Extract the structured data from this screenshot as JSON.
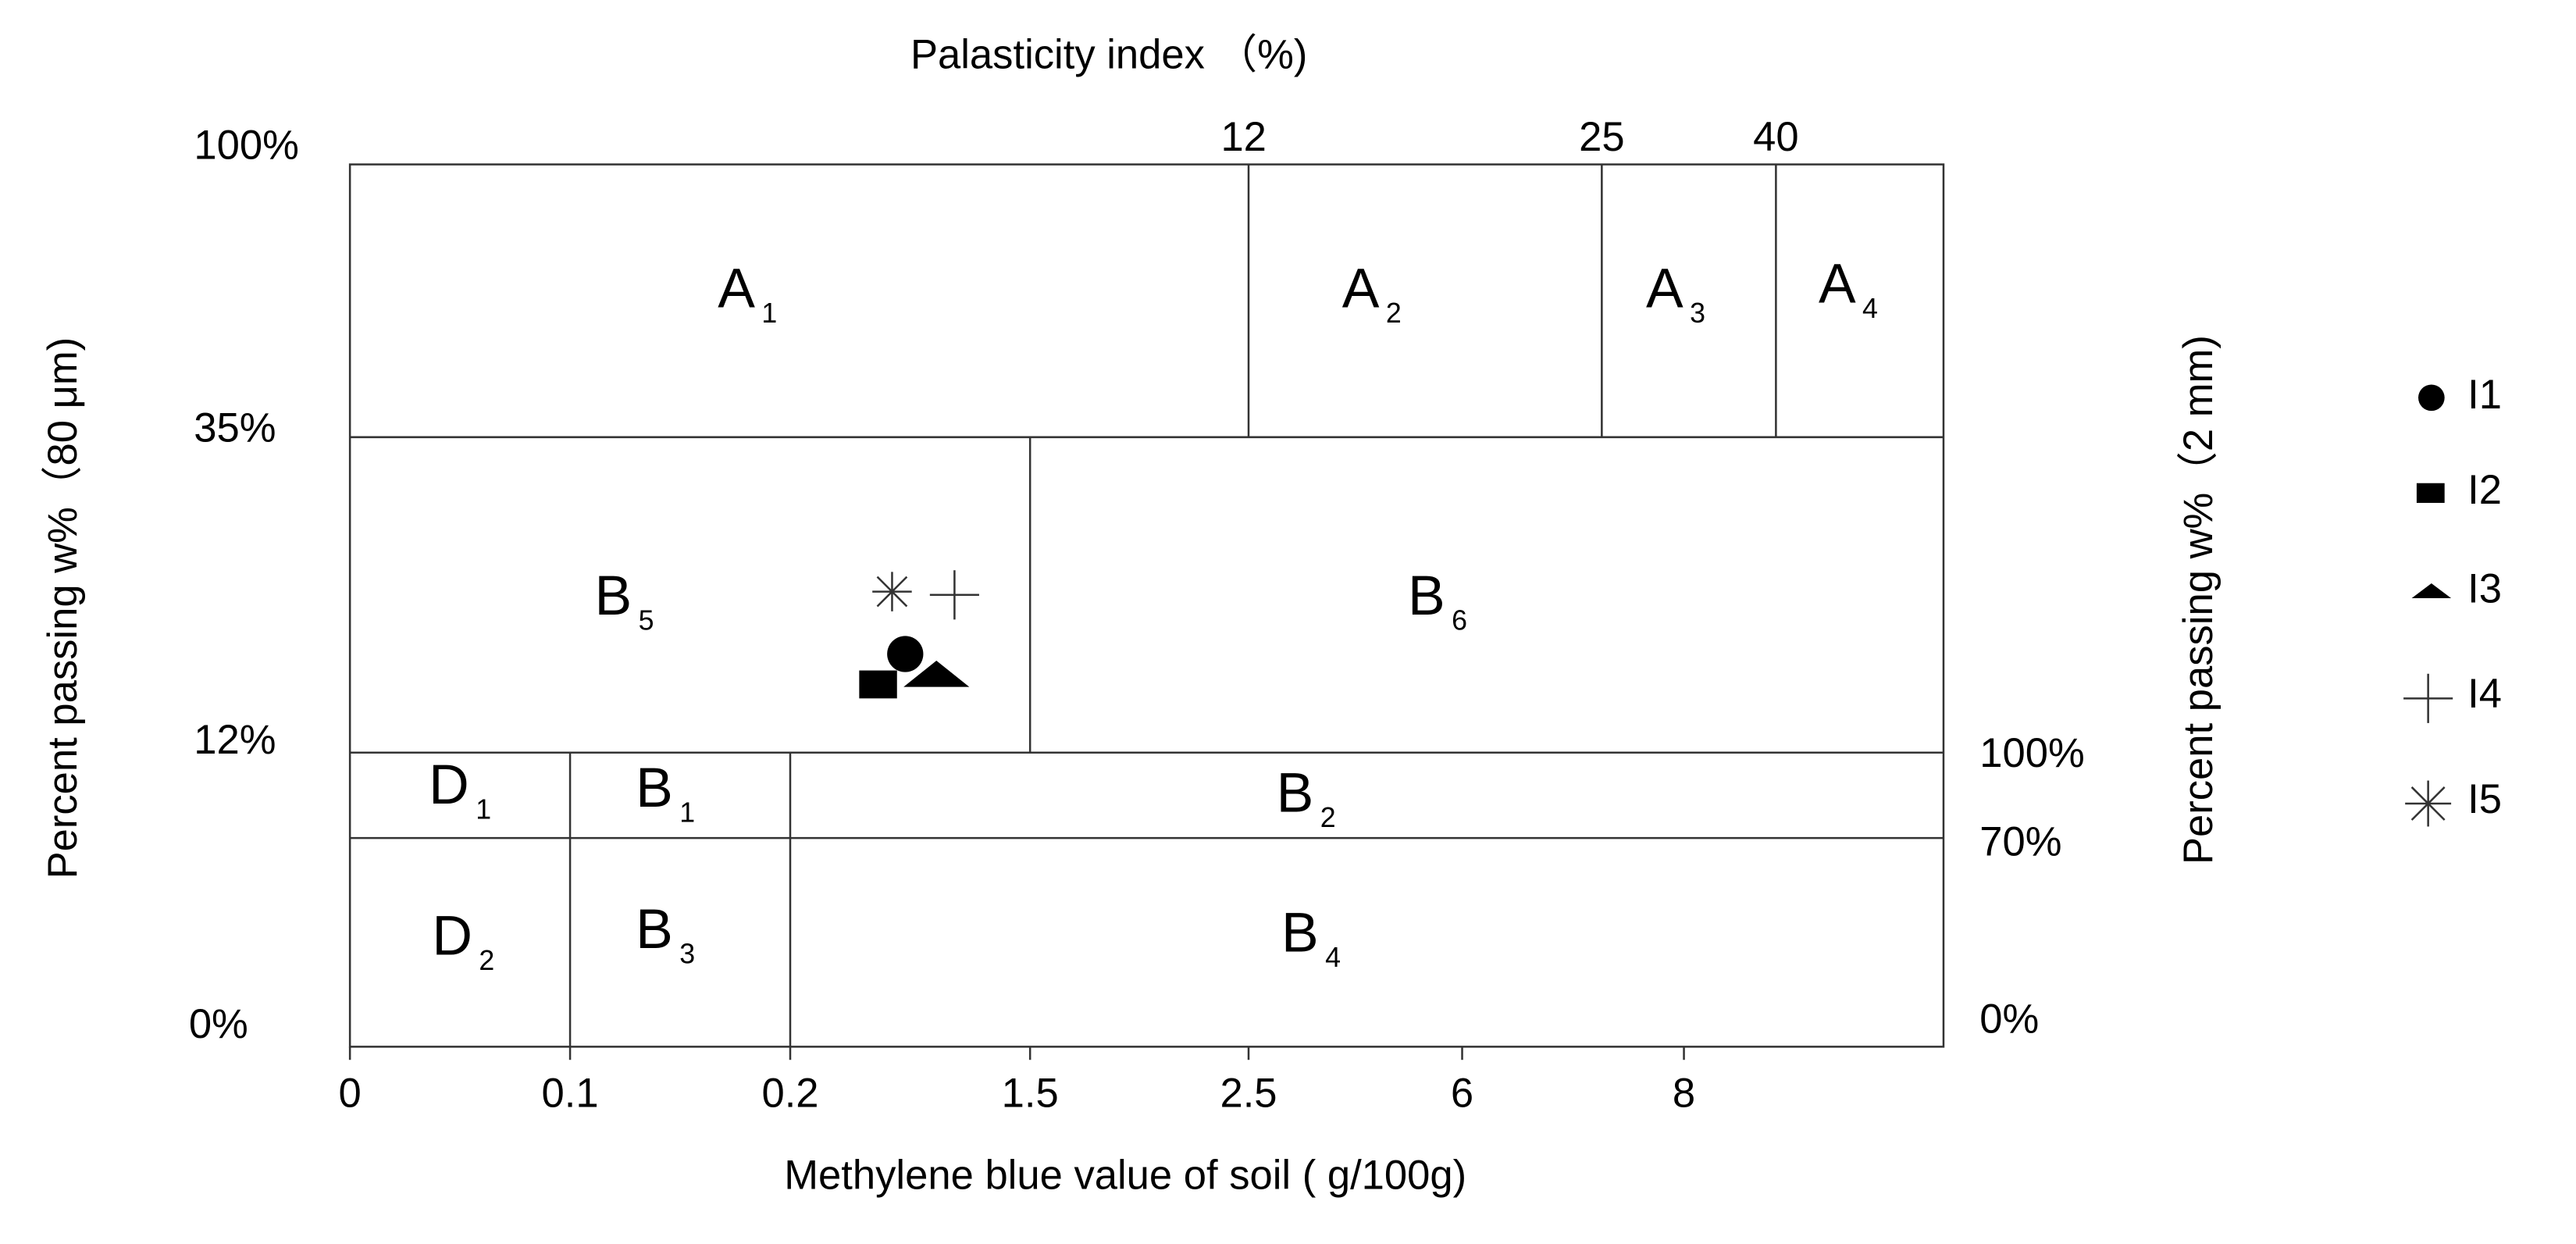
{
  "title": "Palasticity index （%)",
  "x_axis_label": "Methylene blue value of soil ( g/100g)",
  "left_axis_label": "Percent passing w%（80 μm)",
  "right_axis_label": "Percent passing w%（2 mm)",
  "bottom_ticks": [
    "0",
    "0.1",
    "0.2",
    "1.5",
    "2.5",
    "6",
    "8"
  ],
  "top_ticks": [
    "12",
    "25",
    "40"
  ],
  "left_ticks": [
    "100%",
    "35%",
    "12%",
    "0%"
  ],
  "right_ticks": [
    "100%",
    "70%",
    "0%"
  ],
  "zones": [
    {
      "letter": "A",
      "sub": "1"
    },
    {
      "letter": "A",
      "sub": "2"
    },
    {
      "letter": "A",
      "sub": "3"
    },
    {
      "letter": "A",
      "sub": "4"
    },
    {
      "letter": "B",
      "sub": "5"
    },
    {
      "letter": "B",
      "sub": "6"
    },
    {
      "letter": "D",
      "sub": "1"
    },
    {
      "letter": "B",
      "sub": "1"
    },
    {
      "letter": "B",
      "sub": "2"
    },
    {
      "letter": "D",
      "sub": "2"
    },
    {
      "letter": "B",
      "sub": "3"
    },
    {
      "letter": "B",
      "sub": "4"
    }
  ],
  "legend": [
    "I1",
    "I2",
    "I3",
    "I4",
    "I5"
  ]
}
